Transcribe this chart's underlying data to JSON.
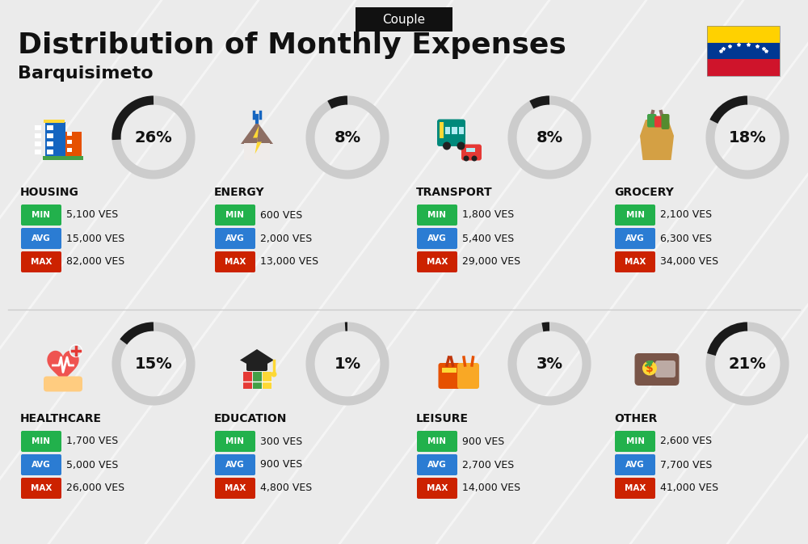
{
  "title": "Distribution of Monthly Expenses",
  "subtitle": "Barquisimeto",
  "header_label": "Couple",
  "bg_color": "#ebebeb",
  "categories": [
    {
      "name": "HOUSING",
      "pct": 26,
      "icon": "housing",
      "min": "5,100 VES",
      "avg": "15,000 VES",
      "max": "82,000 VES",
      "row": 0,
      "col": 0
    },
    {
      "name": "ENERGY",
      "pct": 8,
      "icon": "energy",
      "min": "600 VES",
      "avg": "2,000 VES",
      "max": "13,000 VES",
      "row": 0,
      "col": 1
    },
    {
      "name": "TRANSPORT",
      "pct": 8,
      "icon": "transport",
      "min": "1,800 VES",
      "avg": "5,400 VES",
      "max": "29,000 VES",
      "row": 0,
      "col": 2
    },
    {
      "name": "GROCERY",
      "pct": 18,
      "icon": "grocery",
      "min": "2,100 VES",
      "avg": "6,300 VES",
      "max": "34,000 VES",
      "row": 0,
      "col": 3
    },
    {
      "name": "HEALTHCARE",
      "pct": 15,
      "icon": "healthcare",
      "min": "1,700 VES",
      "avg": "5,000 VES",
      "max": "26,000 VES",
      "row": 1,
      "col": 0
    },
    {
      "name": "EDUCATION",
      "pct": 1,
      "icon": "education",
      "min": "300 VES",
      "avg": "900 VES",
      "max": "4,800 VES",
      "row": 1,
      "col": 1
    },
    {
      "name": "LEISURE",
      "pct": 3,
      "icon": "leisure",
      "min": "900 VES",
      "avg": "2,700 VES",
      "max": "14,000 VES",
      "row": 1,
      "col": 2
    },
    {
      "name": "OTHER",
      "pct": 21,
      "icon": "other",
      "min": "2,600 VES",
      "avg": "7,700 VES",
      "max": "41,000 VES",
      "row": 1,
      "col": 3
    }
  ],
  "min_color": "#22b14c",
  "avg_color": "#2b7cd3",
  "max_color": "#cc2200",
  "donut_dark": "#1a1a1a",
  "donut_light": "#cccccc",
  "text_color": "#111111",
  "flag_colors": [
    "#FFD100",
    "#003893",
    "#CF142B"
  ],
  "diagonal_color": "#ffffff",
  "diagonal_alpha": 0.55
}
